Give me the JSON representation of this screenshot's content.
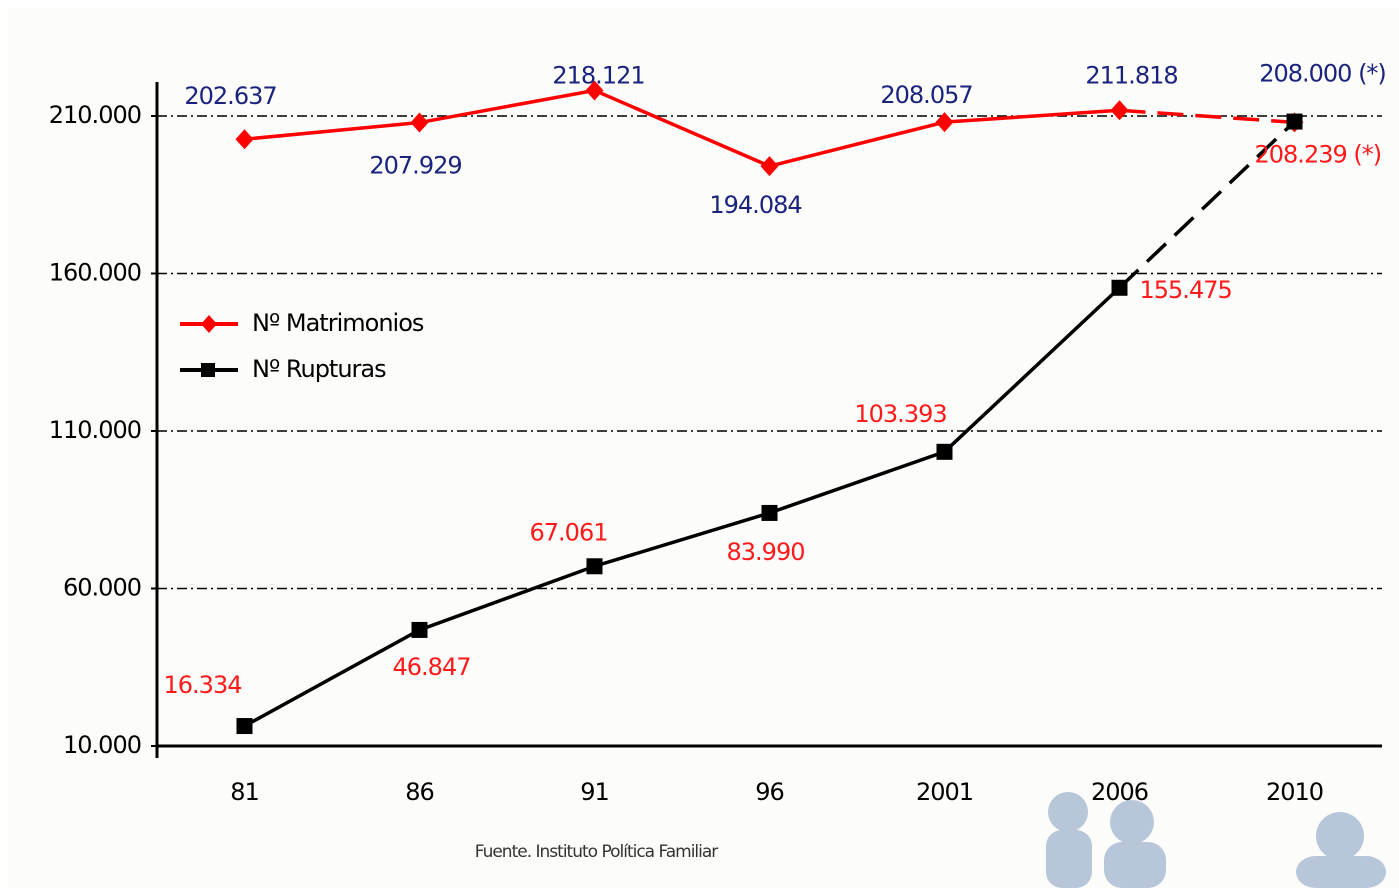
{
  "chart_data": {
    "type": "line",
    "categories": [
      "81",
      "86",
      "91",
      "96",
      "2001",
      "2006",
      "2010"
    ],
    "series": [
      {
        "name": "Nº Matrimonios",
        "color": "#ff0000",
        "label_color": "#1a237e",
        "marker": "diamond",
        "values": [
          202637,
          207929,
          218121,
          194084,
          208057,
          211818,
          208000
        ],
        "value_labels": [
          "202.637",
          "207.929",
          "218.121",
          "194.084",
          "208.057",
          "211.818",
          "208.000 (*)"
        ]
      },
      {
        "name": "Nº Rupturas",
        "color": "#000000",
        "label_color": "#ff1a1a",
        "marker": "square",
        "values": [
          16334,
          46847,
          67061,
          83990,
          103393,
          155475,
          208239
        ],
        "value_labels": [
          "16.334",
          "46.847",
          "67.061",
          "83.990",
          "103.393",
          "155.475",
          "208.239 (*)"
        ]
      }
    ],
    "ylim": [
      10000,
      220800
    ],
    "yticks": [
      {
        "value": 10000,
        "label": "10.000"
      },
      {
        "value": 60000,
        "label": "60.000"
      },
      {
        "value": 110000,
        "label": "110.000"
      },
      {
        "value": 160000,
        "label": "160.000"
      },
      {
        "value": 210000,
        "label": "210.000"
      }
    ],
    "grid": true,
    "legend": "center left",
    "source": "Fuente. Instituto Política Familiar"
  }
}
